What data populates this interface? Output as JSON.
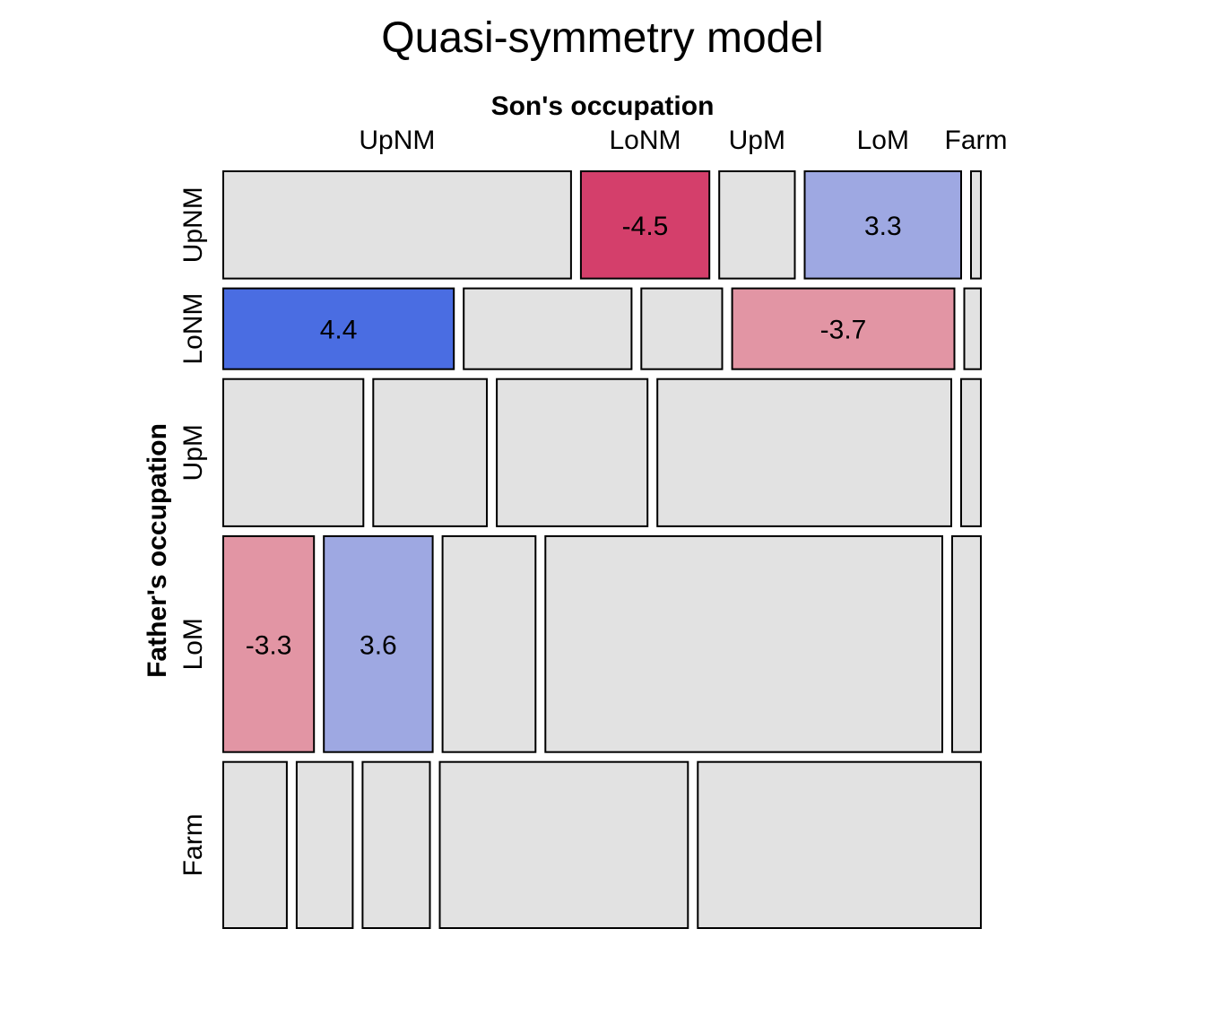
{
  "chart_data": {
    "type": "mosaic",
    "title": "Quasi-symmetry model",
    "col_variable": "Son's occupation",
    "row_variable": "Father's occupation",
    "categories": [
      "UpNM",
      "LoNM",
      "UpM",
      "LoM",
      "Farm"
    ],
    "row_proportions": [
      0.142,
      0.107,
      0.195,
      0.286,
      0.22
    ],
    "cell_proportions": [
      [
        0.46,
        0.17,
        0.1,
        0.207,
        0.013
      ],
      [
        0.305,
        0.222,
        0.107,
        0.294,
        0.022
      ],
      [
        0.185,
        0.15,
        0.199,
        0.388,
        0.026
      ],
      [
        0.12,
        0.144,
        0.123,
        0.525,
        0.038
      ],
      [
        0.084,
        0.074,
        0.089,
        0.328,
        0.374
      ]
    ],
    "residuals": [
      [
        null,
        -4.5,
        null,
        3.3,
        null
      ],
      [
        4.4,
        null,
        null,
        -3.7,
        null
      ],
      [
        null,
        null,
        null,
        null,
        null
      ],
      [
        -3.3,
        3.6,
        null,
        null,
        null
      ],
      [
        null,
        null,
        null,
        null,
        null
      ]
    ],
    "labels": [
      [
        "",
        "-4.5",
        "",
        "3.3",
        ""
      ],
      [
        "4.4",
        "",
        "",
        "-3.7",
        ""
      ],
      [
        "",
        "",
        "",
        "",
        ""
      ],
      [
        "-3.3",
        "3.6",
        "",
        "",
        ""
      ],
      [
        "",
        "",
        "",
        "",
        ""
      ]
    ],
    "colors": {
      "neutral": "#e2e2e2",
      "pos_mid": "#9ea8e2",
      "pos_strong": "#4a6de2",
      "neg_mid": "#e295a4",
      "neg_strong": "#d43f6b"
    },
    "shading_breaks": [
      2,
      4
    ]
  }
}
